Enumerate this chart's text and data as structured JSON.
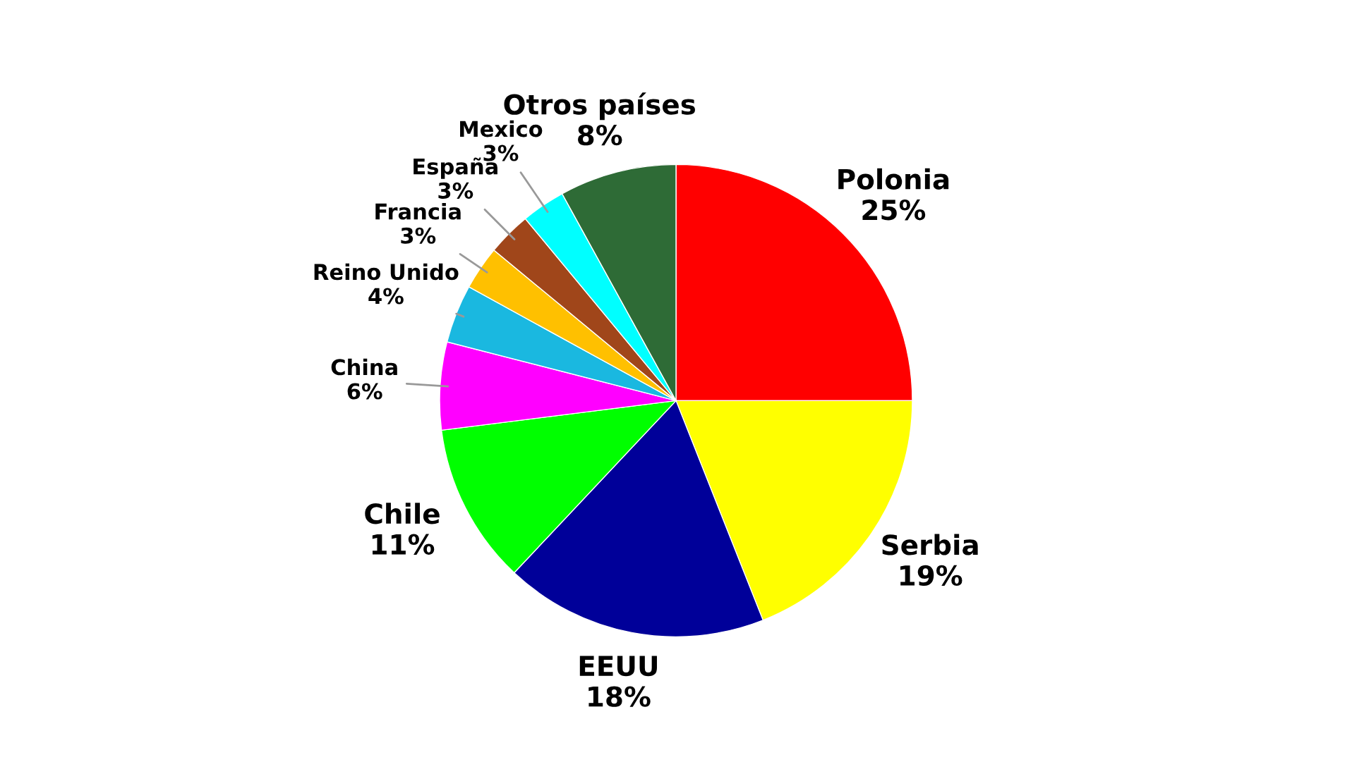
{
  "chart_data": {
    "type": "pie",
    "categories": [
      "Polonia",
      "Serbia",
      "EEUU",
      "Chile",
      "China",
      "Reino Unido",
      "Francia",
      "España",
      "Mexico",
      "Otros países"
    ],
    "values": [
      25,
      19,
      18,
      11,
      6,
      4,
      3,
      3,
      3,
      8
    ],
    "value_labels": [
      "25%",
      "19%",
      "18%",
      "11%",
      "6%",
      "4%",
      "3%",
      "3%",
      "3%",
      "8%"
    ],
    "colors": [
      "#ff0000",
      "#ffff00",
      "#000099",
      "#00ff00",
      "#ff00ff",
      "#1ab8e0",
      "#ffc000",
      "#a0461a",
      "#00ffff",
      "#2e6b36"
    ],
    "legend": false
  }
}
